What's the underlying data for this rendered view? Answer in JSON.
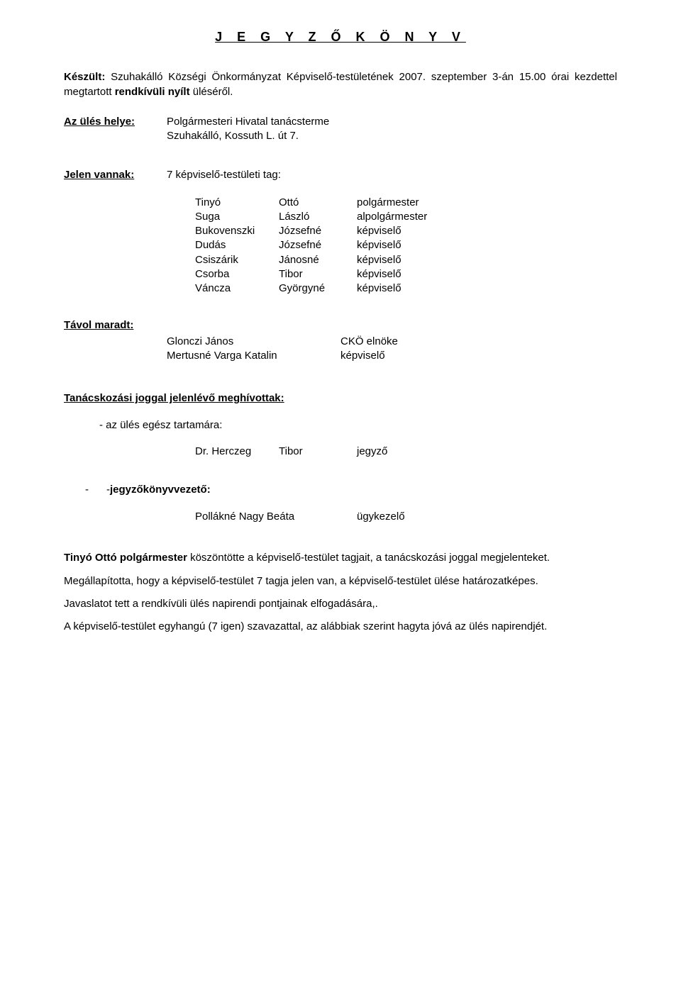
{
  "title": "J E G Y Z Ő K Ö N Y V",
  "intro_lead": "Készült:",
  "intro_text_1": " Szuhakálló Községi Önkormányzat Képviselő-testületének 2007. szeptember 3-án 15.00 órai kezdettel megtartott ",
  "intro_bold": "rendkívüli nyílt",
  "intro_text_2": " üléséről.",
  "location_label": "Az ülés helye:",
  "location_line1": "Polgármesteri Hivatal tanácsterme",
  "location_line2": "Szuhakálló, Kossuth L. út 7.",
  "present_label": "Jelen vannak:",
  "present_value": "7 képviselő-testületi tag:",
  "members": [
    {
      "last": "Tinyó",
      "first": "Ottó",
      "role": "polgármester"
    },
    {
      "last": "Suga",
      "first": "László",
      "role": "alpolgármester"
    },
    {
      "last": "Bukovenszki",
      "first": "Józsefné",
      "role": "képviselő"
    },
    {
      "last": "Dudás",
      "first": "Józsefné",
      "role": "képviselő"
    },
    {
      "last": "Csiszárik",
      "first": "Jánosné",
      "role": "képviselő"
    },
    {
      "last": "Csorba",
      "first": "Tibor",
      "role": "képviselő"
    },
    {
      "last": "Váncza",
      "first": "Györgyné",
      "role": "képviselő"
    }
  ],
  "absent_label": "Távol maradt:",
  "absent": [
    {
      "name": "Glonczi János",
      "role": "CKÖ elnöke"
    },
    {
      "name": "Mertusné Varga Katalin",
      "role": "képviselő"
    }
  ],
  "consult_heading": "Tanácskozási joggal jelenlévő meghívottak:",
  "bullet_1": "- az ülés egész tartamára:",
  "notary": {
    "last": "Dr. Herczeg",
    "first": "Tibor",
    "role": "jegyző"
  },
  "recorder_dash1": "-",
  "recorder_dash2": "- ",
  "recorder_label": "jegyzőkönyvvezető:",
  "recorder": {
    "name": "Pollákné Nagy Beáta",
    "role": "ügykezelő"
  },
  "para1_bold": "Tinyó Ottó polgármester",
  "para1_rest": " köszöntötte a képviselő-testület tagjait, a tanácskozási joggal megjelenteket.",
  "para2": "Megállapította, hogy a képviselő-testület 7 tagja jelen van, a képviselő-testület ülése határozatképes.",
  "para3": "Javaslatot tett a rendkívüli ülés napirendi pontjainak elfogadására,.",
  "para4": "A képviselő-testület egyhangú (7 igen) szavazattal, az alábbiak szerint hagyta jóvá az ülés napirendjét."
}
